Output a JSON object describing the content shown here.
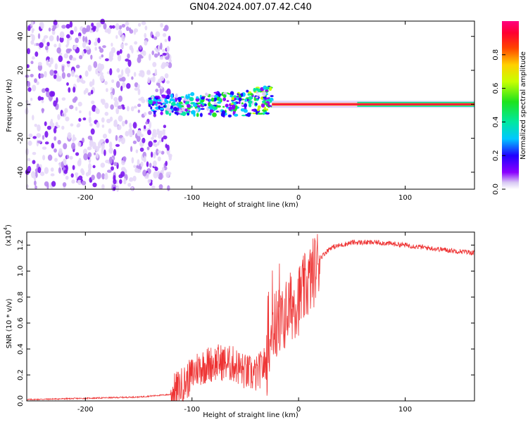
{
  "title": "GN04.2024.007.07.42.C40",
  "chart_data": [
    {
      "type": "heatmap",
      "name": "spectrogram",
      "xlabel": "Height of straight line (km)",
      "ylabel": "Frequency (Hz)",
      "xlim": [
        -255,
        165
      ],
      "ylim": [
        -50,
        49
      ],
      "xticks": [
        -200,
        -100,
        0,
        100
      ],
      "yticks": [
        -40,
        -20,
        0,
        20,
        40
      ],
      "colorbar": {
        "label": "Normalized spectral amplitude",
        "range": [
          0,
          1
        ],
        "ticks": [
          0.0,
          0.2,
          0.4,
          0.6,
          0.8
        ]
      },
      "features": {
        "noise_region_km": [
          -255,
          -120
        ],
        "scattered_band_km": [
          -140,
          -25
        ],
        "steady_line_km": [
          -25,
          165
        ],
        "line_frequency_hz": 0
      }
    },
    {
      "type": "line",
      "name": "snr",
      "series": [
        {
          "name": "SNR",
          "color": "#ee3333"
        }
      ],
      "xlabel": "Height of straight line (km)",
      "ylabel": "SNR (10 * v/v)",
      "yscale_label": "(x10",
      "yscale_exp": "4",
      "xlim": [
        -255,
        165
      ],
      "ylim": [
        0,
        1.3
      ],
      "xticks": [
        -200,
        -100,
        0,
        100
      ],
      "yticks": [
        0.0,
        0.2,
        0.4,
        0.6,
        0.8,
        1.0,
        1.2
      ],
      "profile_x": [
        -255,
        -200,
        -150,
        -120,
        -105,
        -95,
        -85,
        -75,
        -60,
        -50,
        -40,
        -30,
        -25,
        -20,
        -15,
        -10,
        -5,
        0,
        10,
        20,
        30,
        50,
        75,
        100,
        130,
        165
      ],
      "profile_y": [
        0.01,
        0.02,
        0.03,
        0.05,
        0.15,
        0.25,
        0.28,
        0.3,
        0.28,
        0.22,
        0.2,
        0.3,
        0.55,
        0.6,
        0.62,
        0.7,
        0.75,
        0.78,
        0.92,
        1.1,
        1.18,
        1.22,
        1.22,
        1.2,
        1.17,
        1.14
      ]
    }
  ]
}
